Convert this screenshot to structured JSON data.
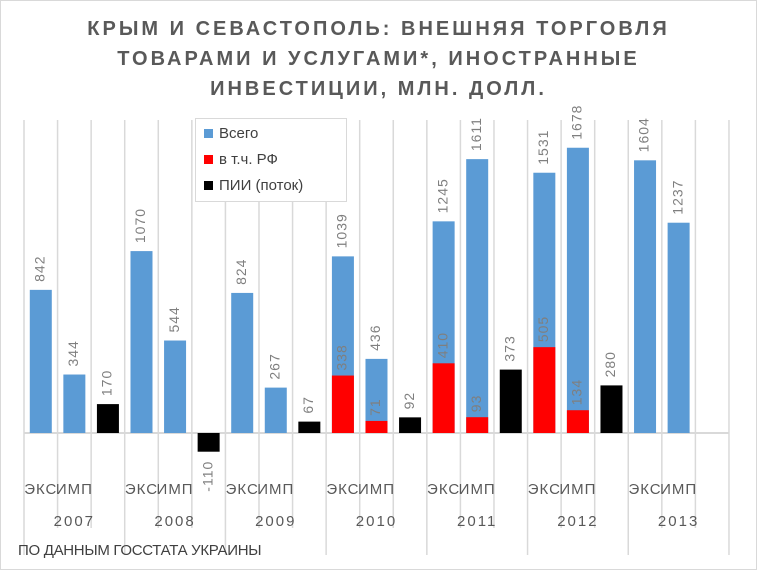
{
  "chart_data": {
    "type": "bar",
    "title_lines": [
      "КРЫМ И СЕВАСТОПОЛЬ: ВНЕШНЯЯ ТОРГОВЛЯ",
      "ТОВАРАМИ И УСЛУГАМИ*, ИНОСТРАННЫЕ",
      "ИНВЕСТИЦИИ, МЛН. ДОЛЛ."
    ],
    "years": [
      "2007",
      "2008",
      "2009",
      "2010",
      "2011",
      "2012",
      "2013"
    ],
    "subcategories": [
      "ЭКС",
      "ИМП",
      ""
    ],
    "series": [
      {
        "name": "Всего",
        "color": "#5b9bd5",
        "values": [
          [
            842,
            344,
            null
          ],
          [
            1070,
            544,
            null
          ],
          [
            824,
            267,
            null
          ],
          [
            1039,
            436,
            null
          ],
          [
            1245,
            1611,
            null
          ],
          [
            1531,
            1678,
            null
          ],
          [
            1604,
            1237,
            null
          ]
        ]
      },
      {
        "name": "в т.ч. РФ",
        "color": "#ff0000",
        "values": [
          [
            null,
            null,
            null
          ],
          [
            null,
            null,
            null
          ],
          [
            null,
            null,
            null
          ],
          [
            338,
            71,
            null
          ],
          [
            410,
            93,
            null
          ],
          [
            505,
            134,
            null
          ],
          [
            null,
            null,
            null
          ]
        ]
      },
      {
        "name": "ПИИ (поток)",
        "color": "#000000",
        "values": [
          [
            null,
            null,
            170
          ],
          [
            null,
            null,
            -110
          ],
          [
            null,
            null,
            67
          ],
          [
            null,
            null,
            92
          ],
          [
            null,
            null,
            373
          ],
          [
            null,
            null,
            280
          ],
          [
            null,
            null,
            null
          ]
        ]
      }
    ],
    "legend_position": "top-left",
    "grid": "vertical category gridlines",
    "source": "ПО ДАННЫМ ГОССТАТА УКРАИНЫ"
  }
}
